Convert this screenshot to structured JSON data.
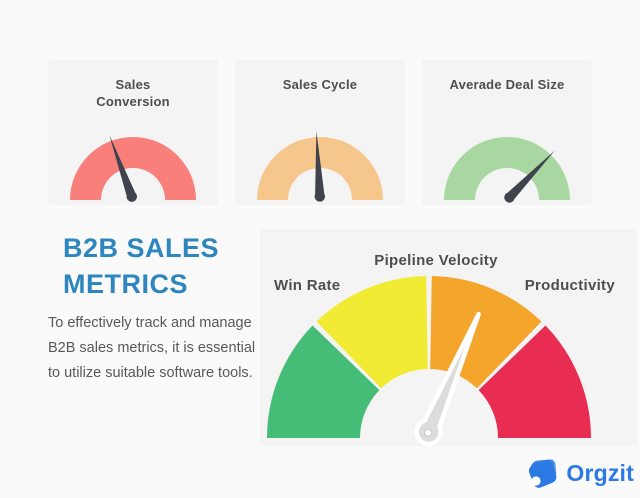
{
  "page": {
    "background": "#FAFAFA",
    "card_background": "#F5F4F4"
  },
  "mini_gauge_cards": [
    {
      "title": "Sales Conversion",
      "arc_color": "#F9807A",
      "needle_color": "#3F434B",
      "needle_angle_deg": -20
    },
    {
      "title": "Sales Cycle",
      "arc_color": "#F6C78C",
      "needle_color": "#3F434B",
      "needle_angle_deg": -3
    },
    {
      "title": "Averade Deal Size",
      "arc_color": "#A9D7A2",
      "needle_color": "#3F434B",
      "needle_angle_deg": 44
    }
  ],
  "intro": {
    "title_lines": [
      "B2B SALES",
      "METRICS"
    ],
    "title_color": "#2E86BE",
    "body_lines": [
      "To effectively track and manage",
      "B2B sales metrics, it is essential",
      "to utilize suitable software tools."
    ]
  },
  "main_gauge": {
    "label_left": "Win Rate",
    "label_center": "Pipeline Velocity",
    "label_right": "Productivity",
    "segment_colors": {
      "green": "#45BD76",
      "yellow": "#F2EB33",
      "orange": "#F4A52B",
      "red": "#E92D52"
    },
    "needle_color": "#DCDCDC",
    "needle_angle_deg": 23
  },
  "brand": {
    "name": "Orgzit",
    "color": "#2B79E3"
  }
}
